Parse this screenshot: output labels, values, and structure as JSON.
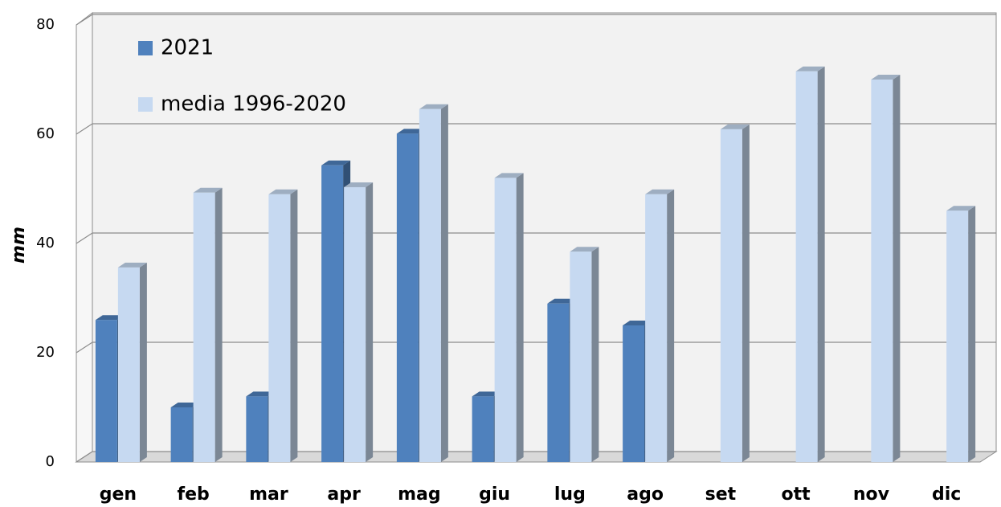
{
  "chart_data": {
    "type": "bar",
    "y_label": "mm",
    "categories": [
      "gen",
      "feb",
      "mar",
      "apr",
      "mag",
      "giu",
      "lug",
      "ago",
      "set",
      "ott",
      "nov",
      "dic"
    ],
    "series": [
      {
        "name": "2021",
        "color": "#4f81bd",
        "values": [
          26,
          10,
          12,
          54.3,
          60.1,
          12,
          29,
          25,
          null,
          null,
          null,
          null
        ]
      },
      {
        "name": "media 1996-2020",
        "color": "#c6d9f1",
        "values": [
          35.6,
          49.3,
          49,
          50.3,
          64.6,
          52,
          38.5,
          49,
          60.9,
          71.5,
          70,
          46
        ]
      }
    ],
    "ylim": [
      0,
      80
    ],
    "yticks": [
      0,
      20,
      40,
      60,
      80
    ],
    "grid": true,
    "legend": "top-left"
  }
}
